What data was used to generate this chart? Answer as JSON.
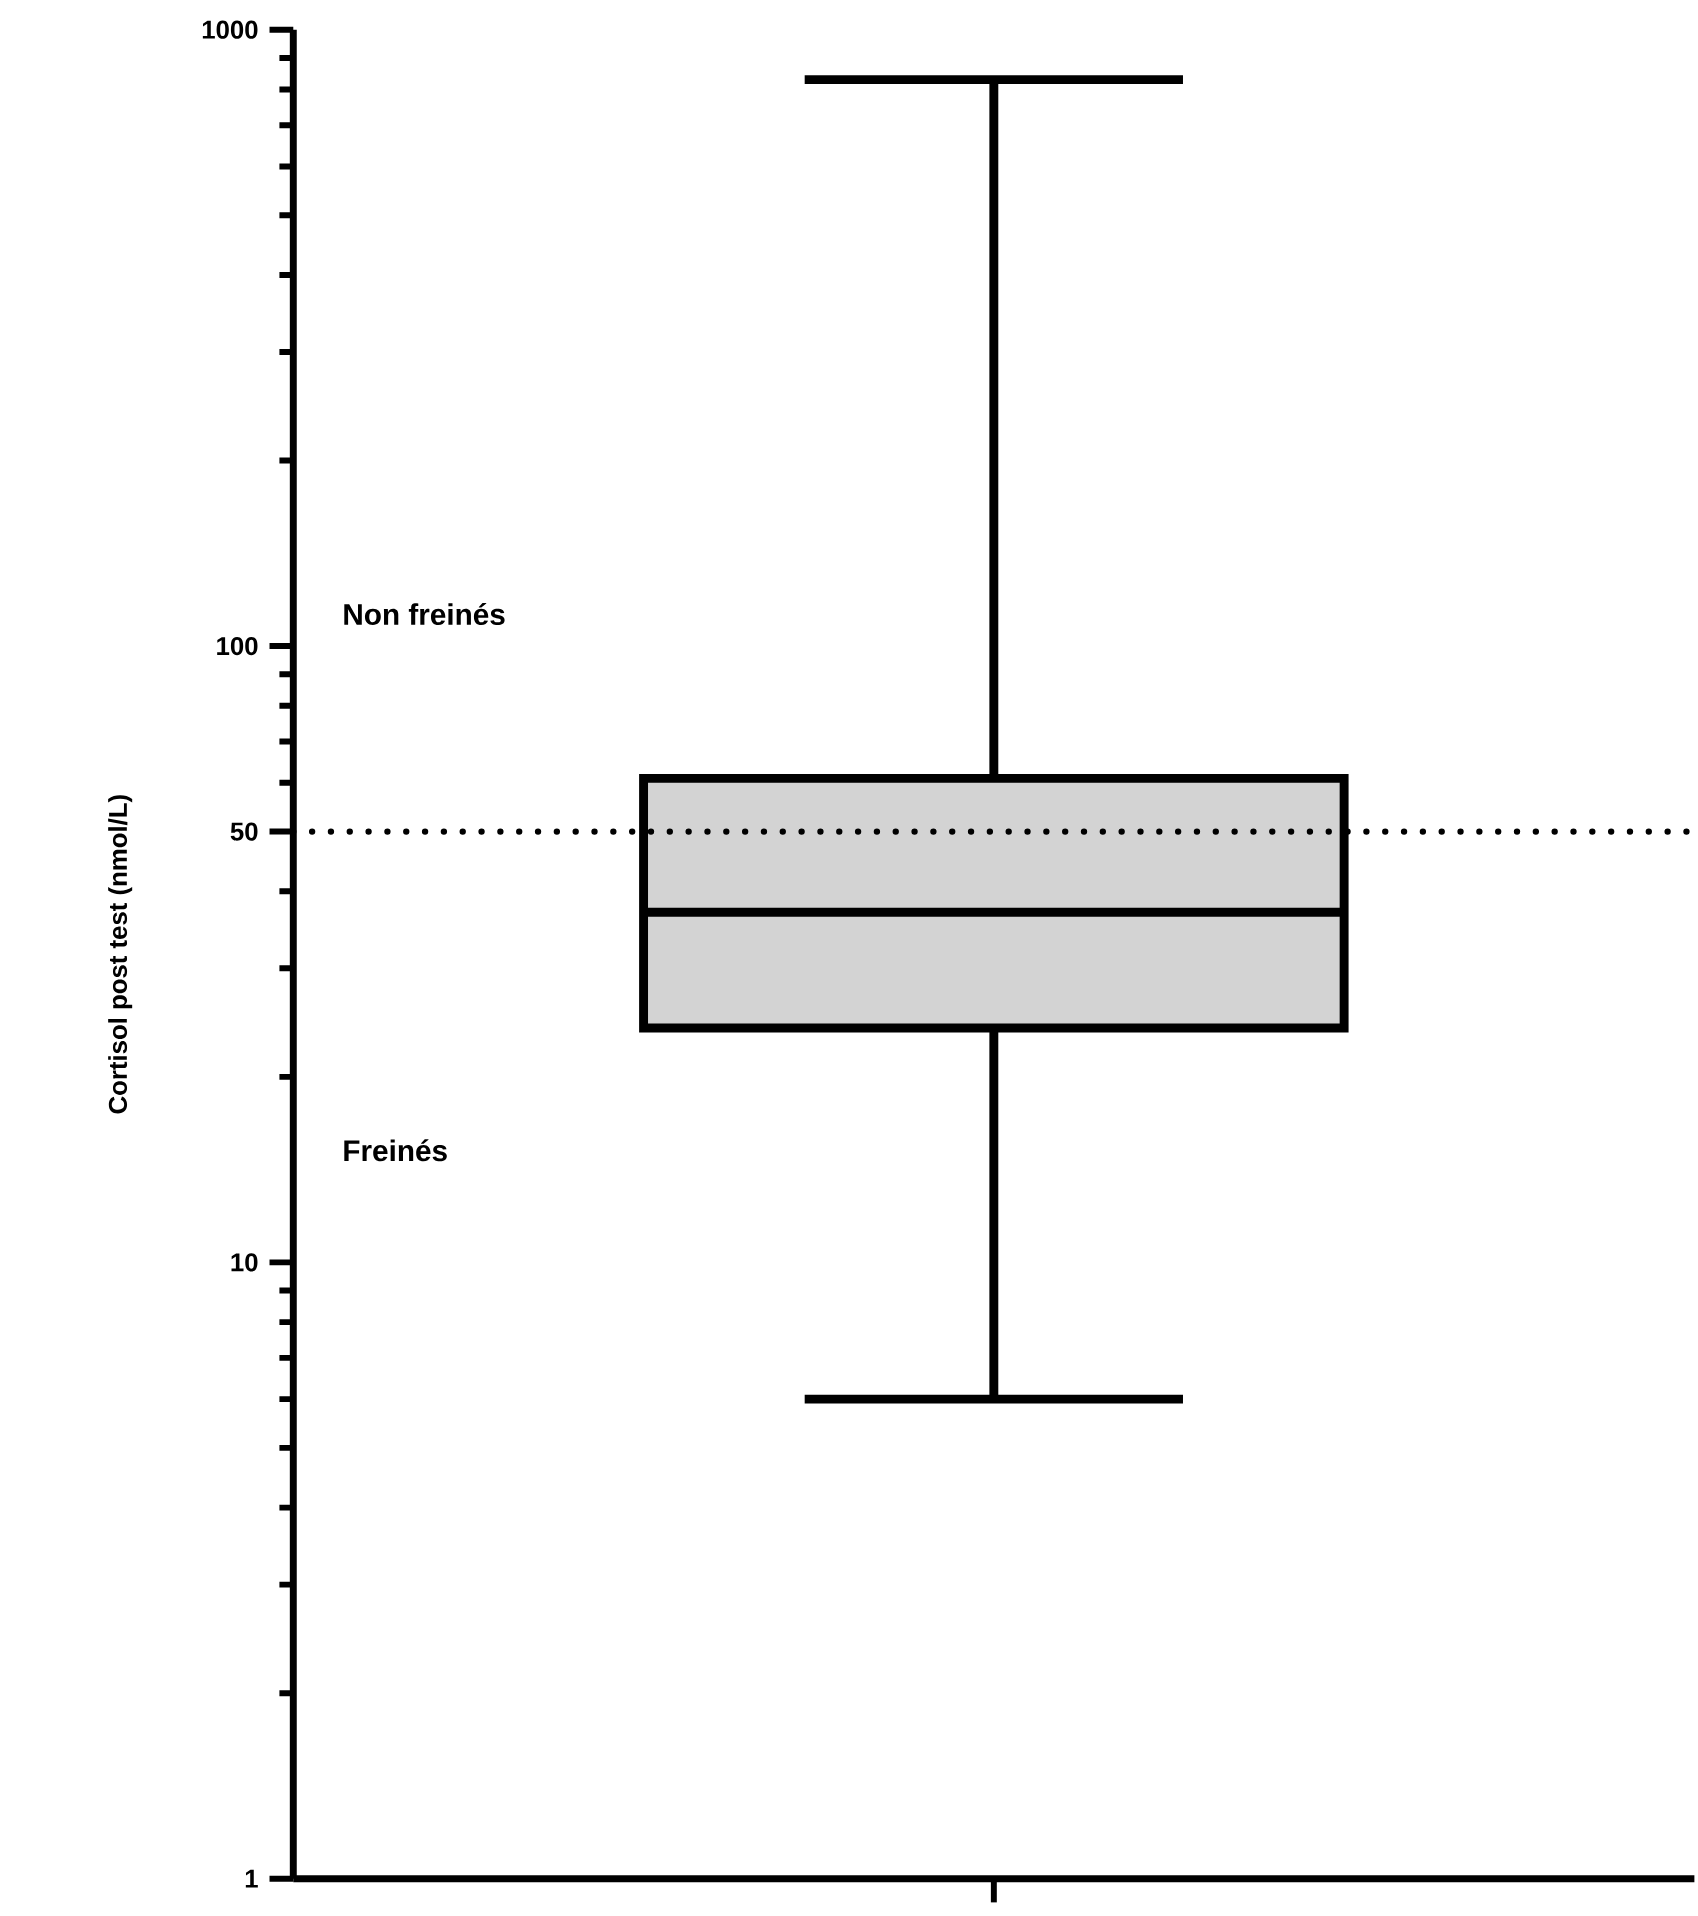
{
  "chart_data": {
    "type": "box",
    "ylabel": "Cortisol post test (nmol/L)",
    "categories": [
      null
    ],
    "series": [
      {
        "color": "#d3d3d3",
        "boxes": [
          {
            "low": 6,
            "q1": 24,
            "median": 37,
            "q3": 61,
            "high": 830
          }
        ]
      }
    ],
    "log": "y",
    "ylim": [
      1,
      1000
    ],
    "yticks": [
      1,
      {
        "value": 2,
        "label": null
      },
      {
        "value": 3,
        "label": null
      },
      {
        "value": 4,
        "label": null
      },
      {
        "value": 5,
        "label": null
      },
      {
        "value": 6,
        "label": null
      },
      {
        "value": 7,
        "label": null
      },
      {
        "value": 8,
        "label": null
      },
      {
        "value": 9,
        "label": null
      },
      10,
      {
        "value": 20,
        "label": null
      },
      {
        "value": 30,
        "label": null
      },
      {
        "value": 40,
        "label": null
      },
      50,
      {
        "value": 60,
        "label": null
      },
      {
        "value": 70,
        "label": null
      },
      {
        "value": 80,
        "label": null
      },
      {
        "value": 90,
        "label": null
      },
      100,
      {
        "value": 200,
        "label": null
      },
      {
        "value": 300,
        "label": null
      },
      {
        "value": 400,
        "label": null
      },
      {
        "value": 500,
        "label": null
      },
      {
        "value": 600,
        "label": null
      },
      {
        "value": 700,
        "label": null
      },
      {
        "value": 800,
        "label": null
      },
      {
        "value": 900,
        "label": null
      },
      1000
    ],
    "ref_lines": [
      {
        "axis": "y",
        "value": 50,
        "line_style": "dotted"
      }
    ],
    "annotations": [
      "Non freinés",
      "Freinés"
    ],
    "grid": false
  }
}
